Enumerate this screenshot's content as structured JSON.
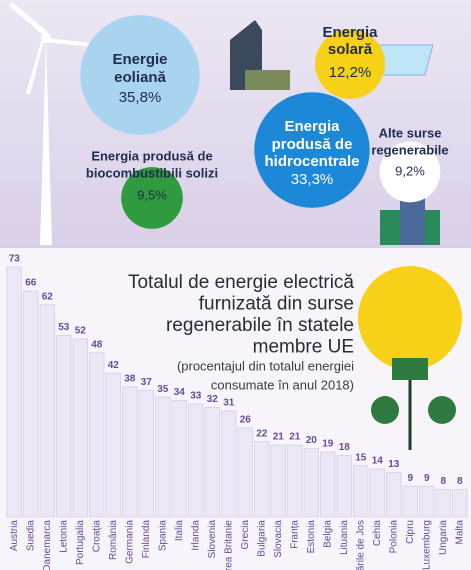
{
  "chart_data": [
    {
      "type": "bubble",
      "categories": [
        [
          "Energie",
          "eoliană"
        ],
        [
          "Energia",
          "solară"
        ],
        [
          "Energia",
          "produsă de",
          "hidrocentrale"
        ],
        [
          "Alte surse",
          "regenerabile"
        ],
        [
          "Energia produsă de",
          "biocombustibili solizi"
        ]
      ],
      "values": [
        35.8,
        12.2,
        33.3,
        9.2,
        9.5
      ],
      "value_labels": [
        "35,8%",
        "12,2%",
        "33,3%",
        "9,2%",
        "9,5%"
      ],
      "colors": [
        "#a9d4ef",
        "#f7d117",
        "#1e88d8",
        "#ffffff",
        "#2f9a3e"
      ]
    },
    {
      "type": "bar",
      "title": [
        "Totalul de energie electrică",
        "furnizată din surse",
        "regenerabile în statele",
        "membre UE"
      ],
      "subtitle": [
        "(procentajul din totalul energiei",
        "consumate în anul 2018)"
      ],
      "categories": [
        "Austria",
        "Suedia",
        "Danemarca",
        "Letonia",
        "Portugalia",
        "Croația",
        "România",
        "Germania",
        "Finlanda",
        "Spania",
        "Italia",
        "Irlanda",
        "Slovenia",
        "Marea Britanie",
        "Grecia",
        "Bulgaria",
        "Slovacia",
        "Franța",
        "Estonia",
        "Belgia",
        "Lituania",
        "Țările de Jos",
        "Cehia",
        "Polonia",
        "Cipru",
        "Luxemburg",
        "Ungaria",
        "Malta"
      ],
      "values": [
        73,
        66,
        62,
        53,
        52,
        48,
        42,
        38,
        37,
        35,
        34,
        33,
        32,
        31,
        26,
        22,
        21,
        21,
        20,
        19,
        18,
        15,
        14,
        13,
        9,
        9,
        8,
        8
      ],
      "color": "#ece6f5"
    }
  ]
}
